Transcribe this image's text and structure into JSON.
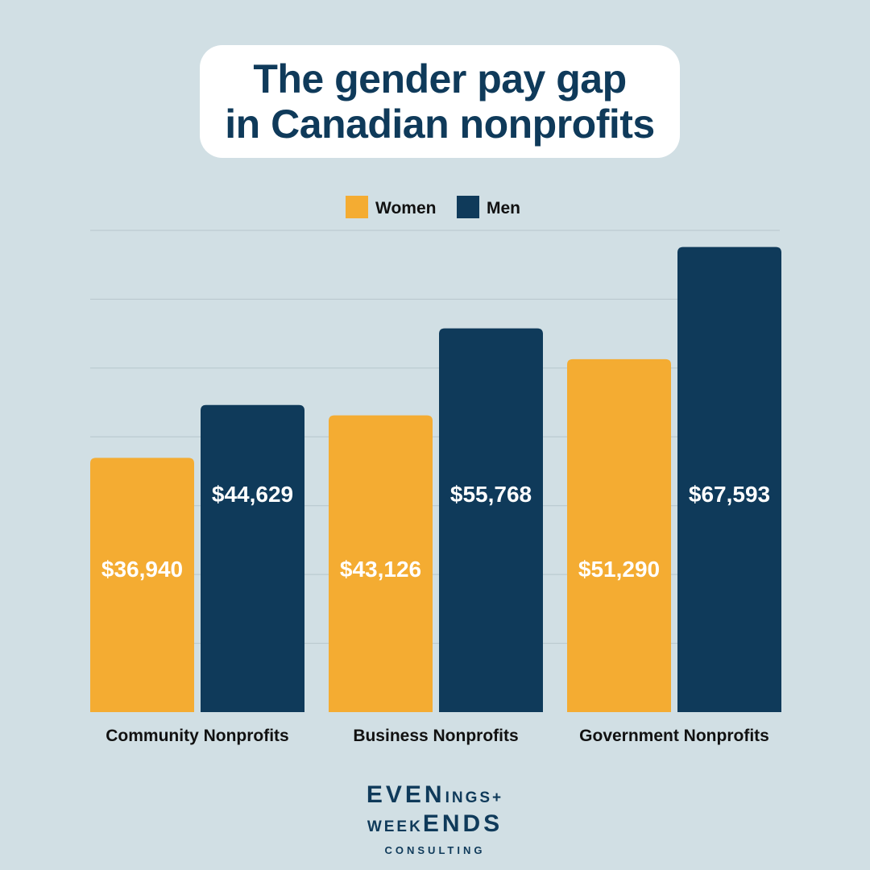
{
  "colors": {
    "background": "#d1dfe4",
    "women": "#f4ac32",
    "men": "#0f3a5a",
    "text": "#0f3a5a",
    "grid": "#b6c6cc",
    "label_text": "#ffffff",
    "axis_text": "#111111"
  },
  "chart_data": {
    "type": "bar",
    "title_line1": "The gender pay gap",
    "title_line2": "in Canadian nonprofits",
    "categories": [
      "Community Nonprofits",
      "Business Nonprofits",
      "Government Nonprofits"
    ],
    "series": [
      {
        "name": "Women",
        "values": [
          36940,
          43126,
          51290
        ],
        "labels": [
          "$36,940",
          "$43,126",
          "$51,290"
        ]
      },
      {
        "name": "Men",
        "values": [
          44629,
          55768,
          67593
        ],
        "labels": [
          "$44,629",
          "$55,768",
          "$67,593"
        ]
      }
    ],
    "ylim": [
      0,
      70000
    ],
    "grid_step": 10000,
    "legend": "top-center"
  },
  "brand": {
    "line1_large": "EVEN",
    "line1_small": "INGS+",
    "line2_small": "WEEK",
    "line2_large": "ENDS",
    "line3": "CONSULTING"
  }
}
